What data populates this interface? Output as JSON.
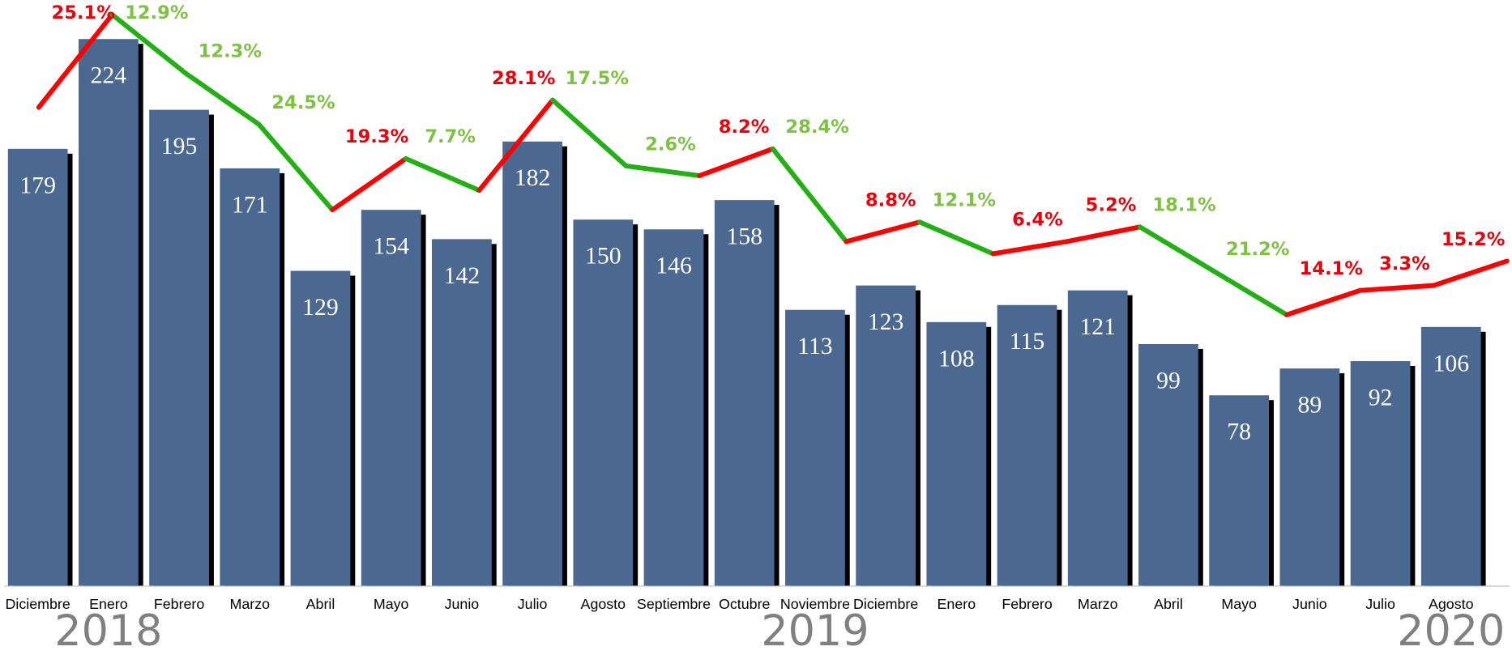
{
  "chart_data": {
    "type": "bar",
    "categories": [
      "Diciembre",
      "Enero",
      "Febrero",
      "Marzo",
      "Abril",
      "Mayo",
      "Junio",
      "Julio",
      "Agosto",
      "Septiembre",
      "Octubre",
      "Noviembre",
      "Diciembre",
      "Enero",
      "Febrero",
      "Marzo",
      "Abril",
      "Mayo",
      "Junio",
      "Julio",
      "Agosto"
    ],
    "values": [
      179,
      224,
      195,
      171,
      129,
      154,
      142,
      182,
      150,
      146,
      158,
      113,
      123,
      108,
      115,
      121,
      99,
      78,
      89,
      92,
      106
    ],
    "color": "#4b6890",
    "shadow_color": "#000000",
    "ylim": [
      0,
      240
    ],
    "line_values": [
      196,
      234,
      210,
      189,
      154,
      175,
      162,
      199,
      172,
      168,
      179,
      141,
      149,
      136,
      141,
      147,
      129,
      111,
      121,
      123,
      133
    ],
    "changes": [
      25.1,
      -12.9,
      -12.3,
      -24.5,
      19.3,
      -7.7,
      28.1,
      -17.5,
      -2.6,
      8.2,
      -28.4,
      8.8,
      -12.1,
      6.4,
      5.2,
      -18.1,
      -21.2,
      14.1,
      3.3,
      15.2
    ],
    "change_labels": [
      "25.1%",
      "12.9%",
      "12.3%",
      "24.5%",
      "19.3%",
      "7.7%",
      "28.1%",
      "17.5%",
      "2.6%",
      "8.2%",
      "28.4%",
      "8.8%",
      "12.1%",
      "6.4%",
      "5.2%",
      "18.1%",
      "21.2%",
      "14.1%",
      "3.3%",
      "15.2%"
    ],
    "increase_color": "#ff0000",
    "decrease_color": "#22b014",
    "increase_label_color": "#e8000b",
    "decrease_label_color": "#7dc242",
    "years": [
      {
        "label": "2018",
        "category": 1
      },
      {
        "label": "2019",
        "category": 11
      },
      {
        "label": "2020",
        "category": 20
      }
    ]
  }
}
